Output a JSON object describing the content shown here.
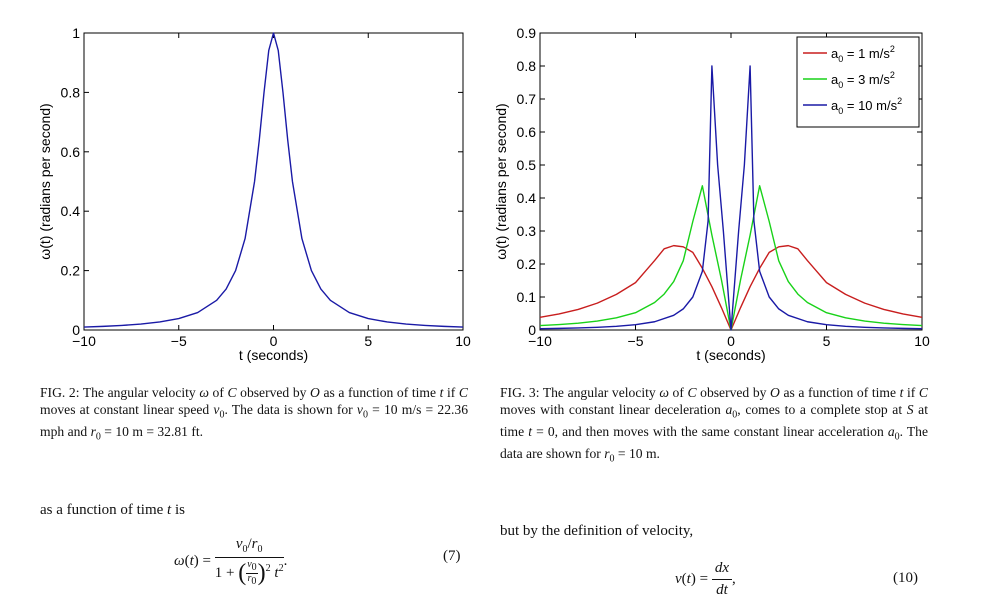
{
  "figure2": {
    "caption": "FIG. 2: The angular velocity ω of C observed by O as a function of time t if C moves at constant linear speed v0. The data is shown for v0 = 10 m/s = 22.36 mph and r0 = 10 m = 32.81 ft.",
    "chart_data": {
      "type": "line",
      "xlabel": "t (seconds)",
      "ylabel": "ω(t) (radians per second)",
      "xlim": [
        -10,
        10
      ],
      "ylim": [
        0,
        1
      ],
      "xticks": [
        -10,
        -5,
        0,
        5,
        10
      ],
      "yticks": [
        0,
        0.2,
        0.4,
        0.6,
        0.8,
        1
      ],
      "xtick_labels": [
        "−10",
        "−5",
        "0",
        "5",
        "10"
      ],
      "ytick_labels": [
        "0",
        "0.2",
        "0.4",
        "0.6",
        "0.8",
        "1"
      ],
      "grid": false,
      "series": [
        {
          "color": "#1a1aa6",
          "x": [
            -10,
            -9,
            -8,
            -7,
            -6,
            -5,
            -4,
            -3,
            -2.5,
            -2,
            -1.5,
            -1,
            -0.75,
            -0.5,
            -0.25,
            0,
            0.25,
            0.5,
            0.75,
            1,
            1.5,
            2,
            2.5,
            3,
            4,
            5,
            6,
            7,
            8,
            9,
            10
          ],
          "y": [
            0.0099,
            0.0122,
            0.0154,
            0.02,
            0.027,
            0.0385,
            0.0588,
            0.1,
            0.1379,
            0.2,
            0.3077,
            0.5,
            0.64,
            0.8,
            0.9412,
            1.0,
            0.9412,
            0.8,
            0.64,
            0.5,
            0.3077,
            0.2,
            0.1379,
            0.1,
            0.0588,
            0.0385,
            0.027,
            0.02,
            0.0154,
            0.0122,
            0.0099
          ]
        }
      ]
    }
  },
  "figure3": {
    "caption": "FIG. 3: The angular velocity ω of C observed by O as a function of time t if C moves with constant linear deceleration a0, comes to a complete stop at S at time t = 0, and then moves with the same constant linear acceleration a0. The data are shown for r0 = 10 m.",
    "chart_data": {
      "type": "line",
      "xlabel": "t (seconds)",
      "ylabel": "ω(t) (radians per second)",
      "xlim": [
        -10,
        10
      ],
      "ylim": [
        0,
        0.9
      ],
      "xticks": [
        -10,
        -5,
        0,
        5,
        10
      ],
      "yticks": [
        0,
        0.1,
        0.2,
        0.3,
        0.4,
        0.5,
        0.6,
        0.7,
        0.8,
        0.9
      ],
      "xtick_labels": [
        "−10",
        "−5",
        "0",
        "5",
        "10"
      ],
      "ytick_labels": [
        "0",
        "0.1",
        "0.2",
        "0.3",
        "0.4",
        "0.5",
        "0.6",
        "0.7",
        "0.8",
        "0.9"
      ],
      "grid": false,
      "legend_position": "top-right",
      "series": [
        {
          "name": "a0 = 1 m/s2",
          "color": "#c81e1e",
          "x": [
            -10,
            -9,
            -8,
            -7,
            -6,
            -5,
            -4.47,
            -4,
            -3.5,
            -3,
            -2.5,
            -2,
            -1.5,
            -1,
            -0.5,
            0,
            0.5,
            1,
            1.5,
            2,
            2.5,
            3,
            3.5,
            4,
            4.47,
            5,
            6,
            7,
            8,
            9,
            10
          ],
          "y": [
            0.0385,
            0.0486,
            0.0624,
            0.0814,
            0.108,
            0.1436,
            0.1789,
            0.2105,
            0.2459,
            0.2557,
            0.2521,
            0.2353,
            0.1871,
            0.1312,
            0.0677,
            0,
            0.0677,
            0.1312,
            0.1871,
            0.2353,
            0.2521,
            0.2557,
            0.2459,
            0.2105,
            0.1789,
            0.1436,
            0.108,
            0.0814,
            0.0624,
            0.0486,
            0.0385
          ]
        },
        {
          "name": "a0 = 3 m/s2",
          "color": "#19d219",
          "x": [
            -10,
            -9,
            -8,
            -7,
            -6,
            -5,
            -4,
            -3.5,
            -3,
            -2.5,
            -2,
            -1.5,
            -1,
            -0.5,
            0,
            0.5,
            1,
            1.5,
            2,
            2.5,
            3,
            3.5,
            4,
            5,
            6,
            7,
            8,
            9,
            10
          ],
          "y": [
            0.0133,
            0.0164,
            0.0207,
            0.0271,
            0.0369,
            0.0524,
            0.0834,
            0.1088,
            0.1468,
            0.2096,
            0.3288,
            0.4371,
            0.2874,
            0.1519,
            0,
            0.1519,
            0.2874,
            0.4371,
            0.3288,
            0.2096,
            0.1468,
            0.1088,
            0.0834,
            0.0524,
            0.0369,
            0.0271,
            0.0207,
            0.0164,
            0.0133
          ]
        },
        {
          "name": "a0 = 10 m/s2",
          "color": "#1a1aa6",
          "x": [
            -10,
            -9,
            -8,
            -7,
            -6,
            -5,
            -4,
            -3,
            -2.5,
            -2,
            -1.5,
            -1.2,
            -1,
            -0.7,
            -0.4,
            -0.2,
            0,
            0.2,
            0.4,
            0.7,
            1,
            1.2,
            1.5,
            2,
            2.5,
            3,
            4,
            5,
            6,
            7,
            8,
            9,
            10
          ],
          "y": [
            0.004,
            0.0049,
            0.0063,
            0.0082,
            0.0111,
            0.016,
            0.025,
            0.0444,
            0.064,
            0.1,
            0.1778,
            0.33,
            0.8,
            0.5,
            0.3,
            0.15,
            0,
            0.15,
            0.3,
            0.5,
            0.8,
            0.33,
            0.1778,
            0.1,
            0.064,
            0.0444,
            0.025,
            0.016,
            0.0111,
            0.0082,
            0.0063,
            0.0049,
            0.004
          ]
        }
      ]
    }
  },
  "body": {
    "left_text": "as a function of time t is",
    "right_text": "but by the definition of velocity,",
    "eq7_number": "(7)",
    "eq10_number": "(10)"
  }
}
